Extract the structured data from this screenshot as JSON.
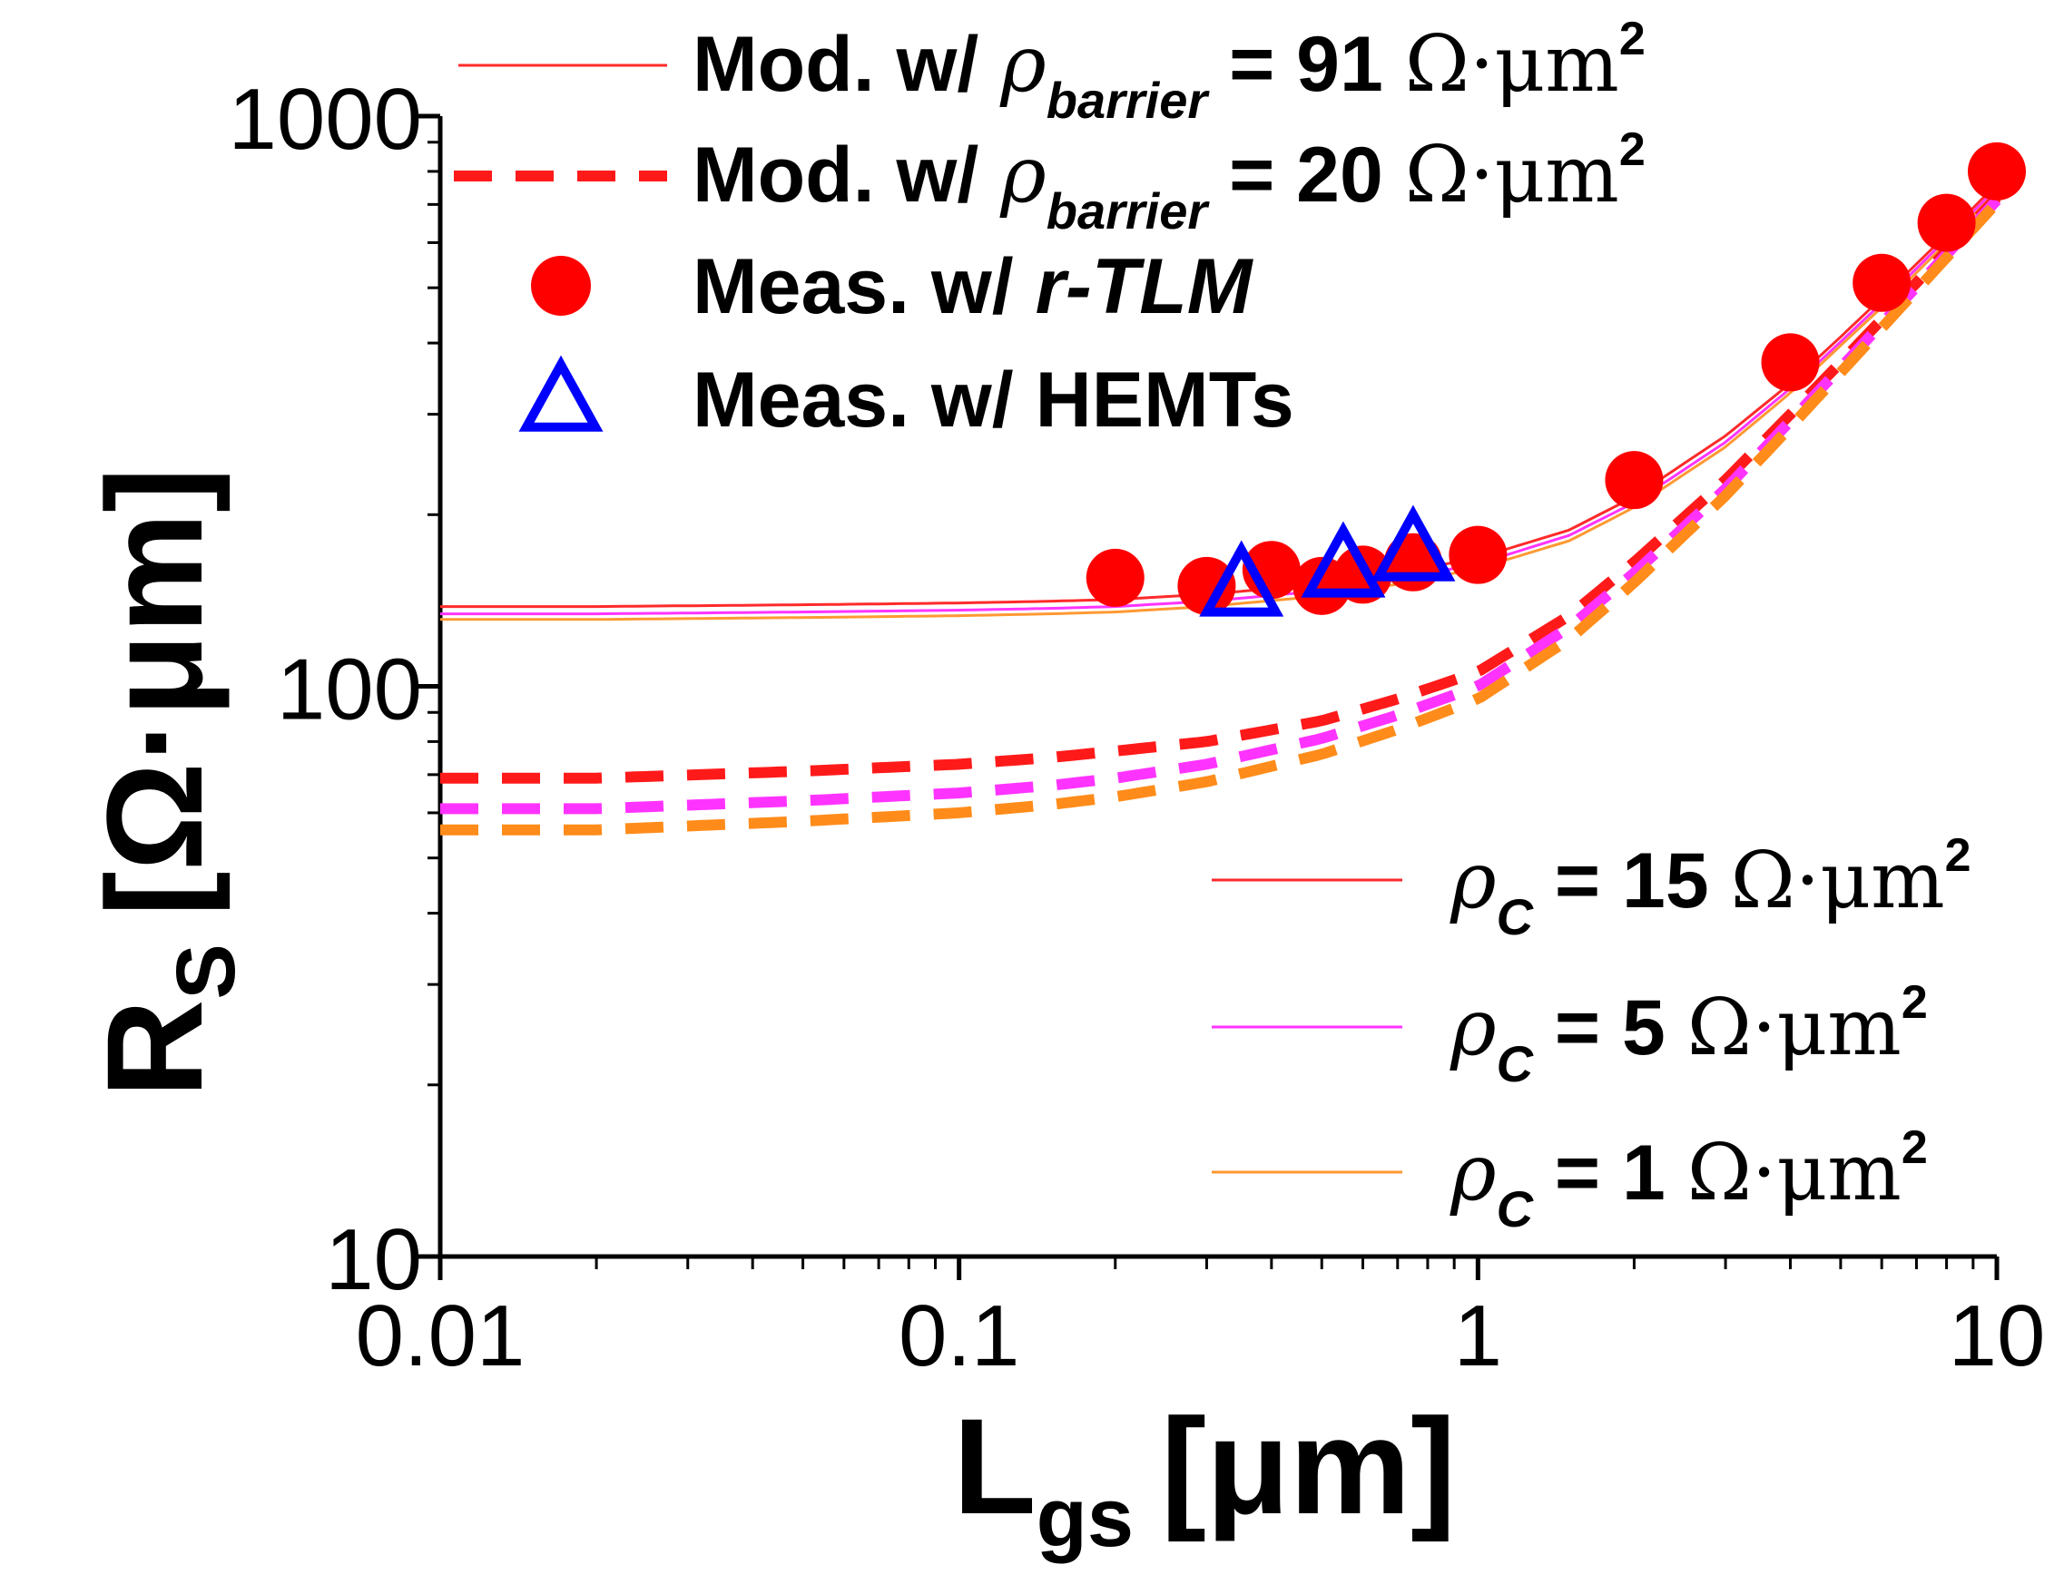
{
  "chart_data": {
    "type": "scatter",
    "title": "",
    "xlabel": "L",
    "xlabel_sub": "gs",
    "xlabel_unit": "[μm]",
    "ylabel": "R",
    "ylabel_sub": "S",
    "ylabel_unit": "[Ω·μm]",
    "xscale": "log",
    "yscale": "log",
    "xlim": [
      0.01,
      10
    ],
    "ylim": [
      10,
      1000
    ],
    "x_ticks": [
      0.01,
      0.1,
      1,
      10
    ],
    "x_tick_labels": [
      "0.01",
      "0.1",
      "1",
      "10"
    ],
    "y_ticks": [
      10,
      100,
      1000
    ],
    "y_tick_labels": [
      "10",
      "100",
      "1000"
    ],
    "model_x": [
      0.01,
      0.02,
      0.05,
      0.1,
      0.15,
      0.2,
      0.3,
      0.5,
      0.7,
      1.0,
      1.5,
      2.0,
      3.0,
      4.0,
      5.0,
      6.0,
      8.0,
      10.0
    ],
    "series": [
      {
        "name": "Mod. w/ ρbarrier = 91, ρC = 15",
        "kind": "line",
        "dash": "solid",
        "color": "#ff2a2a",
        "values": [
          138,
          138,
          139,
          140,
          141,
          142,
          145,
          151,
          158,
          168,
          188,
          215,
          275,
          340,
          410,
          480,
          620,
          760
        ]
      },
      {
        "name": "Mod. w/ ρbarrier = 91, ρC = 5",
        "kind": "line",
        "dash": "solid",
        "color": "#ff33ff",
        "values": [
          134,
          134,
          135,
          136,
          137,
          138,
          141,
          147,
          154,
          164,
          184,
          210,
          268,
          333,
          402,
          470,
          610,
          748
        ]
      },
      {
        "name": "Mod. w/ ρbarrier = 91, ρC = 1",
        "kind": "line",
        "dash": "solid",
        "color": "#ff9933",
        "values": [
          131,
          131,
          132,
          133,
          134,
          135,
          138,
          144,
          151,
          161,
          180,
          206,
          263,
          327,
          396,
          462,
          600,
          738
        ]
      },
      {
        "name": "Mod. w/ ρbarrier = 20, ρC = 15",
        "kind": "line",
        "dash": "dashed",
        "color": "#ff1a1a",
        "values": [
          69,
          69,
          71,
          73,
          75,
          77,
          80,
          87,
          95,
          106,
          133,
          165,
          230,
          300,
          370,
          440,
          580,
          720
        ]
      },
      {
        "name": "Mod. w/ ρbarrier = 20, ρC = 5",
        "kind": "line",
        "dash": "dashed",
        "color": "#ff33ff",
        "values": [
          61,
          61,
          63,
          65,
          67,
          69,
          73,
          81,
          89,
          100,
          127,
          158,
          222,
          292,
          362,
          432,
          572,
          712
        ]
      },
      {
        "name": "Mod. w/ ρbarrier = 20, ρC = 1",
        "kind": "line",
        "dash": "dashed",
        "color": "#ff8c1a",
        "values": [
          56,
          56,
          58,
          60,
          62,
          64,
          68,
          76,
          84,
          95,
          121,
          152,
          216,
          285,
          355,
          425,
          565,
          705
        ]
      },
      {
        "name": "Meas. w/ r-TLM",
        "kind": "scatter",
        "marker": "circle",
        "color": "#ff0000",
        "x": [
          0.2,
          0.3,
          0.4,
          0.5,
          0.6,
          0.75,
          1.0,
          2.0,
          4.0,
          6.0,
          8.0,
          10.0
        ],
        "values": [
          155,
          150,
          160,
          150,
          157,
          165,
          170,
          230,
          370,
          510,
          650,
          800
        ]
      },
      {
        "name": "Meas. w/ HEMTs",
        "kind": "scatter",
        "marker": "triangle",
        "color": "#0000ff",
        "x": [
          0.35,
          0.55,
          0.75
        ],
        "values": [
          150,
          162,
          173
        ]
      }
    ],
    "legend_upper": [
      {
        "kind": "solid",
        "color": "#ff2a2a",
        "prefix": "Mod. w/ ",
        "sub": "barrier",
        "suffix": " = 91 ",
        "unit": "Ω·μm",
        "sup": "2"
      },
      {
        "kind": "dashed",
        "color": "#ff1a1a",
        "prefix": "Mod. w/ ",
        "sub": "barrier",
        "suffix": " = 20 ",
        "unit": "Ω·μm",
        "sup": "2"
      },
      {
        "kind": "circle",
        "color": "#ff0000",
        "text": "Meas. w/ ",
        "italic": "r-TLM"
      },
      {
        "kind": "triangle",
        "color": "#0000ff",
        "text": "Meas. w/ HEMTs"
      }
    ],
    "legend_lower": [
      {
        "color": "#ff2a2a",
        "sub": "C",
        "value": " = 15 ",
        "unit": "Ω·μm",
        "sup": "2"
      },
      {
        "color": "#ff33ff",
        "sub": "C",
        "value": " = 5 ",
        "unit": "Ω·μm",
        "sup": "2"
      },
      {
        "color": "#ff9933",
        "sub": "C",
        "value": " = 1 ",
        "unit": "Ω·μm",
        "sup": "2"
      }
    ]
  }
}
